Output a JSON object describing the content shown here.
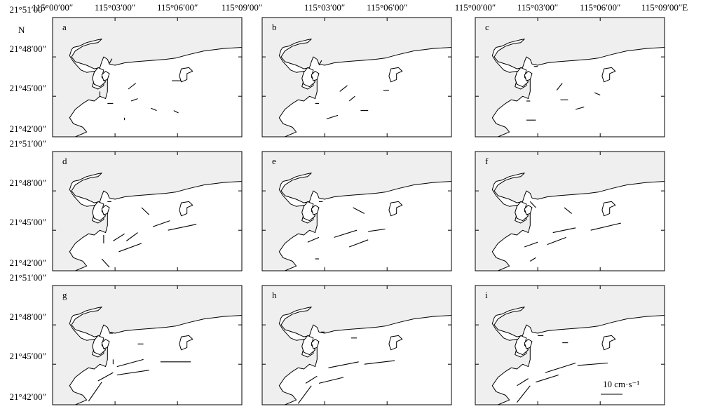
{
  "axis_top_labels": [
    {
      "col": 0,
      "labels": [
        "115°00′00″",
        "115°03′00″",
        "115°06′00″",
        "115°09′00″"
      ]
    },
    {
      "col": 1,
      "labels": [
        "115°03′00″",
        "115°06′00″"
      ]
    },
    {
      "col": 2,
      "labels": [
        "115°00′00″",
        "115°03′00″",
        "115°06′00″",
        "115°09′00″E"
      ]
    }
  ],
  "north_label": "N",
  "axis_left_labels": [
    {
      "row": 0,
      "labels": [
        "21°51′00″",
        "21°48′00″",
        "21°45′00″",
        "21°42′00″"
      ]
    },
    {
      "row": 1,
      "labels": [
        "21°51′00″",
        "21°48′00″",
        "21°45′00″",
        "21°42′00″"
      ]
    },
    {
      "row": 2,
      "labels": [
        "21°51′00″",
        "21°48′00″",
        "21°45′00″",
        "21°42′00″"
      ]
    }
  ],
  "panels": [
    {
      "label": "a",
      "vectors": [
        [
          0.3,
          0.385,
          0.014,
          -0.04
        ],
        [
          0.44,
          0.55,
          -0.04,
          0.05
        ],
        [
          0.63,
          0.53,
          0.05,
          0.0
        ],
        [
          0.45,
          0.68,
          -0.035,
          0.02
        ],
        [
          0.52,
          0.76,
          0.03,
          0.02
        ],
        [
          0.64,
          0.78,
          0.025,
          0.02
        ],
        [
          0.38,
          0.84,
          0.0,
          0.02
        ],
        [
          0.29,
          0.72,
          0.03,
          0.0
        ],
        [
          0.25,
          0.62,
          0.0,
          0.04
        ]
      ]
    },
    {
      "label": "b",
      "vectors": [
        [
          0.3,
          0.4,
          0.014,
          -0.04
        ],
        [
          0.45,
          0.57,
          -0.04,
          0.05
        ],
        [
          0.64,
          0.61,
          0.03,
          0.0
        ],
        [
          0.49,
          0.66,
          -0.03,
          0.04
        ],
        [
          0.52,
          0.78,
          0.04,
          0.0
        ],
        [
          0.34,
          0.85,
          0.06,
          -0.03
        ],
        [
          0.28,
          0.72,
          0.02,
          0.0
        ]
      ]
    },
    {
      "label": "c",
      "vectors": [
        [
          0.31,
          0.41,
          0.02,
          0.0
        ],
        [
          0.46,
          0.55,
          -0.03,
          0.06
        ],
        [
          0.63,
          0.63,
          0.03,
          0.02
        ],
        [
          0.49,
          0.69,
          -0.04,
          0.0
        ],
        [
          0.53,
          0.77,
          0.045,
          -0.02
        ],
        [
          0.27,
          0.86,
          0.05,
          0.0
        ],
        [
          0.27,
          0.7,
          0.02,
          0.0
        ]
      ]
    },
    {
      "label": "d",
      "vectors": [
        [
          0.29,
          0.42,
          0.02,
          0.0
        ],
        [
          0.47,
          0.47,
          0.04,
          0.06
        ],
        [
          0.45,
          0.68,
          -0.06,
          0.07
        ],
        [
          0.53,
          0.63,
          0.09,
          -0.05
        ],
        [
          0.61,
          0.66,
          0.15,
          -0.05
        ],
        [
          0.35,
          0.84,
          0.12,
          -0.07
        ],
        [
          0.32,
          0.75,
          0.06,
          -0.06
        ],
        [
          0.27,
          0.7,
          0.0,
          0.07
        ],
        [
          0.26,
          0.9,
          0.04,
          0.07
        ]
      ]
    },
    {
      "label": "e",
      "vectors": [
        [
          0.3,
          0.42,
          0.02,
          0.0
        ],
        [
          0.48,
          0.47,
          0.06,
          0.05
        ],
        [
          0.38,
          0.72,
          0.12,
          -0.06
        ],
        [
          0.56,
          0.67,
          0.09,
          -0.02
        ],
        [
          0.46,
          0.8,
          0.1,
          -0.06
        ],
        [
          0.24,
          0.76,
          0.06,
          -0.04
        ],
        [
          0.28,
          0.9,
          0.02,
          0.0
        ]
      ]
    },
    {
      "label": "f",
      "vectors": [
        [
          0.29,
          0.42,
          0.03,
          0.05
        ],
        [
          0.47,
          0.47,
          0.04,
          0.05
        ],
        [
          0.41,
          0.68,
          0.12,
          -0.04
        ],
        [
          0.61,
          0.66,
          0.16,
          -0.06
        ],
        [
          0.38,
          0.78,
          0.1,
          -0.06
        ],
        [
          0.26,
          0.8,
          0.07,
          -0.04
        ],
        [
          0.29,
          0.92,
          0.03,
          -0.03
        ]
      ]
    },
    {
      "label": "g",
      "vectors": [
        [
          0.3,
          0.4,
          0.02,
          0.0
        ],
        [
          0.45,
          0.49,
          0.03,
          0.0
        ],
        [
          0.34,
          0.68,
          0.14,
          -0.06
        ],
        [
          0.57,
          0.64,
          0.16,
          0.0
        ],
        [
          0.34,
          0.75,
          0.17,
          -0.04
        ],
        [
          0.24,
          0.8,
          0.08,
          -0.07
        ],
        [
          0.19,
          0.97,
          0.07,
          -0.16
        ],
        [
          0.32,
          0.62,
          0.0,
          0.04
        ]
      ]
    },
    {
      "label": "h",
      "vectors": [
        [
          0.31,
          0.39,
          0.02,
          0.0
        ],
        [
          0.47,
          0.44,
          0.03,
          0.0
        ],
        [
          0.35,
          0.69,
          0.16,
          -0.05
        ],
        [
          0.54,
          0.66,
          0.16,
          -0.03
        ],
        [
          0.3,
          0.82,
          0.13,
          -0.05
        ],
        [
          0.23,
          0.82,
          0.06,
          -0.06
        ],
        [
          0.19,
          0.99,
          0.07,
          -0.15
        ]
      ]
    },
    {
      "label": "i",
      "vectors": [
        [
          0.33,
          0.42,
          0.03,
          0.0
        ],
        [
          0.46,
          0.48,
          0.03,
          0.0
        ],
        [
          0.37,
          0.73,
          0.16,
          -0.08
        ],
        [
          0.54,
          0.67,
          0.16,
          -0.02
        ],
        [
          0.32,
          0.81,
          0.12,
          -0.06
        ],
        [
          0.22,
          0.84,
          0.06,
          -0.06
        ],
        [
          0.22,
          0.98,
          0.07,
          -0.14
        ]
      ]
    }
  ],
  "scale_bar": {
    "label": "10 cm·s⁻¹"
  }
}
